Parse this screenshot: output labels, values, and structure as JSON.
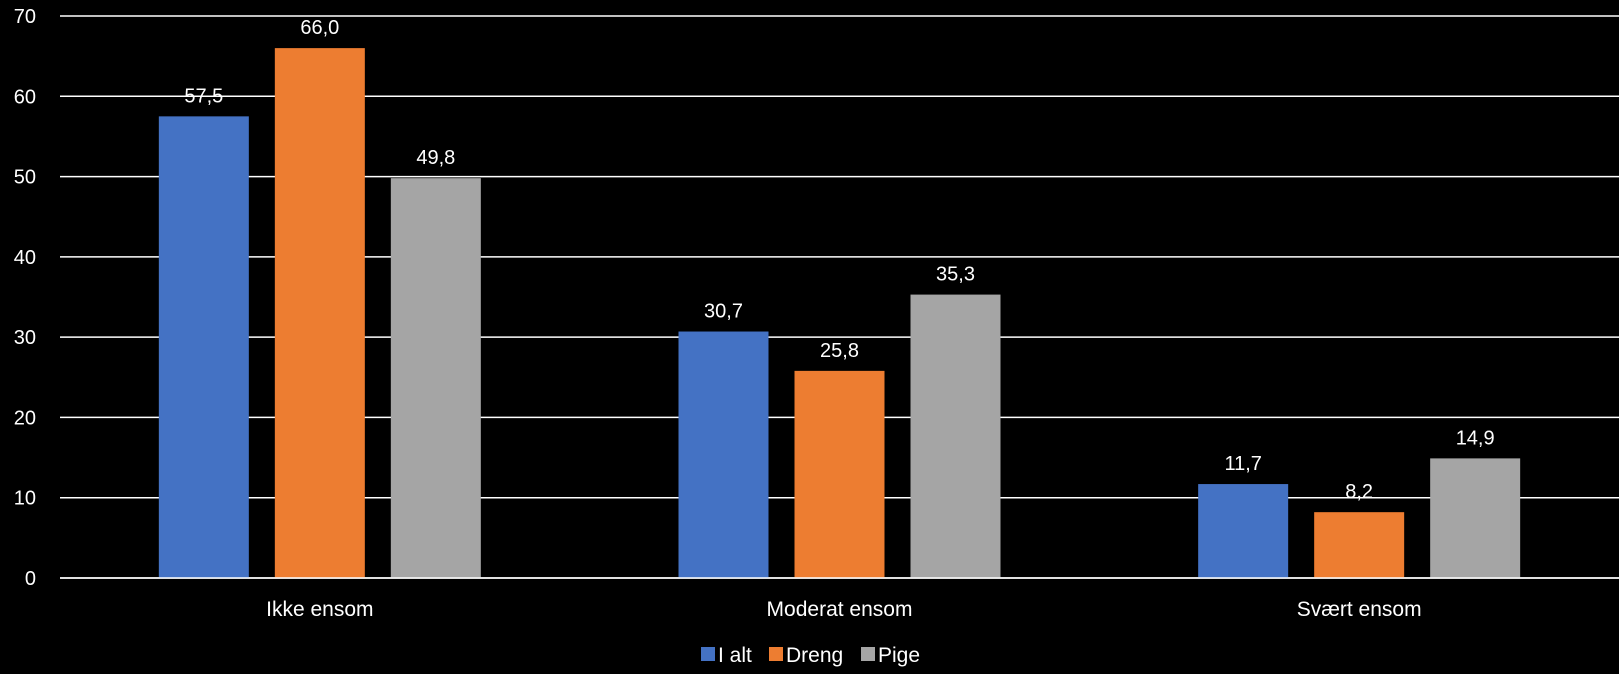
{
  "chart_data": {
    "type": "bar",
    "categories": [
      "Ikke ensom",
      "Moderat ensom",
      "Svært ensom"
    ],
    "series": [
      {
        "name": "I alt",
        "color": "#4472C4",
        "values": [
          57.5,
          30.7,
          11.7
        ],
        "labels": [
          "57,5",
          "30,7",
          "11,7"
        ]
      },
      {
        "name": "Dreng",
        "color": "#ED7D31",
        "values": [
          66.0,
          25.8,
          8.2
        ],
        "labels": [
          "66,0",
          "25,8",
          "8,2"
        ]
      },
      {
        "name": "Pige",
        "color": "#A5A5A5",
        "values": [
          49.8,
          35.3,
          14.9
        ],
        "labels": [
          "49,8",
          "35,3",
          "14,9"
        ]
      }
    ],
    "ylim": [
      0,
      70
    ],
    "yticks": [
      0,
      10,
      20,
      30,
      40,
      50,
      60,
      70
    ],
    "grid": true,
    "legend_position": "bottom",
    "background": "#000000",
    "gridline_color": "#ffffff",
    "text_color": "#ffffff"
  }
}
